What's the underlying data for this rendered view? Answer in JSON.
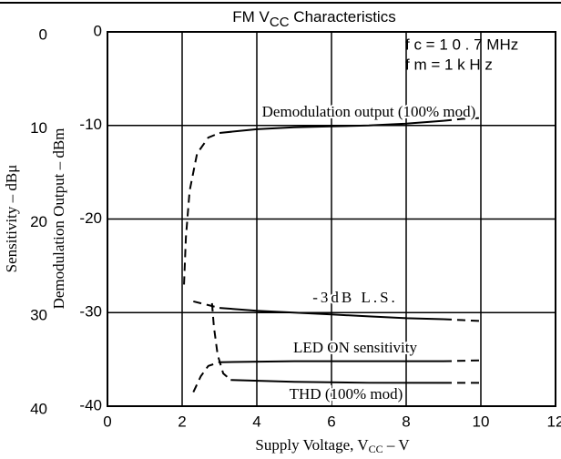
{
  "chart_data": {
    "type": "line",
    "title_main": "FM V",
    "title_sub": "CC",
    "title_rest": " Characteristics",
    "xlabel_main": "Supply Voltage, V",
    "xlabel_sub": "CC",
    "xlabel_rest": " – V",
    "ylabel": "Demodulation Output – dBm",
    "y2label": "Sensitivity – dBμ",
    "conditions": [
      "f c = 1 0 . 7 MHz",
      "f m = 1 k H z"
    ],
    "xlim": [
      0,
      12
    ],
    "xticks": [
      0,
      2,
      4,
      6,
      8,
      10,
      12
    ],
    "ylim": [
      -40,
      0
    ],
    "yticks": [
      0,
      -10,
      -20,
      -30,
      -40
    ],
    "y2lim": [
      40,
      0
    ],
    "y2ticks": [
      0,
      10,
      20,
      30,
      40
    ],
    "grid": true,
    "color": "#000000",
    "series": [
      {
        "name": "Demodulation output (100% mod)",
        "segments": [
          {
            "style": "dashed",
            "x": [
              2.05,
              2.1,
              2.2,
              2.4,
              2.7,
              3.0
            ],
            "values": [
              -27,
              -22,
              -17,
              -13,
              -11.3,
              -10.8
            ]
          },
          {
            "style": "solid",
            "x": [
              3,
              4,
              5,
              6,
              7,
              8,
              9
            ],
            "values": [
              -10.8,
              -10.4,
              -10.2,
              -10.1,
              -10,
              -9.8,
              -9.5
            ]
          },
          {
            "style": "dashed",
            "x": [
              9,
              9.5,
              10
            ],
            "values": [
              -9.5,
              -9.3,
              -9.2
            ]
          }
        ]
      },
      {
        "name": "-3dB L.S.",
        "segments": [
          {
            "style": "dashed",
            "x": [
              2.3,
              2.7,
              3.0
            ],
            "values": [
              -28.8,
              -29.2,
              -29.5
            ]
          },
          {
            "style": "solid",
            "x": [
              3,
              4,
              5,
              6,
              7,
              8,
              9
            ],
            "values": [
              -29.5,
              -29.8,
              -30,
              -30.2,
              -30.4,
              -30.6,
              -30.7
            ]
          },
          {
            "style": "dashed",
            "x": [
              9,
              10
            ],
            "values": [
              -30.7,
              -30.9
            ]
          }
        ]
      },
      {
        "name": "LED ON sensitivity",
        "segments": [
          {
            "style": "dashed",
            "x": [
              2.3,
              2.5,
              2.7,
              3.0
            ],
            "values": [
              -38.5,
              -36.8,
              -35.7,
              -35.3
            ]
          },
          {
            "style": "solid",
            "x": [
              3,
              5,
              7,
              9
            ],
            "values": [
              -35.3,
              -35.2,
              -35.2,
              -35.2
            ]
          },
          {
            "style": "dashed",
            "x": [
              9,
              10
            ],
            "values": [
              -35.2,
              -35.1
            ]
          }
        ]
      },
      {
        "name": "THD (100% mod)",
        "segments": [
          {
            "style": "dashed",
            "x": [
              2.8,
              2.85,
              2.95,
              3.1,
              3.3
            ],
            "values": [
              -29,
              -31.5,
              -34.5,
              -36.5,
              -37.2
            ]
          },
          {
            "style": "solid",
            "x": [
              3.3,
              5,
              7,
              9
            ],
            "values": [
              -37.2,
              -37.4,
              -37.5,
              -37.5
            ]
          },
          {
            "style": "dashed",
            "x": [
              9,
              10
            ],
            "values": [
              -37.5,
              -37.5
            ]
          }
        ]
      }
    ]
  }
}
